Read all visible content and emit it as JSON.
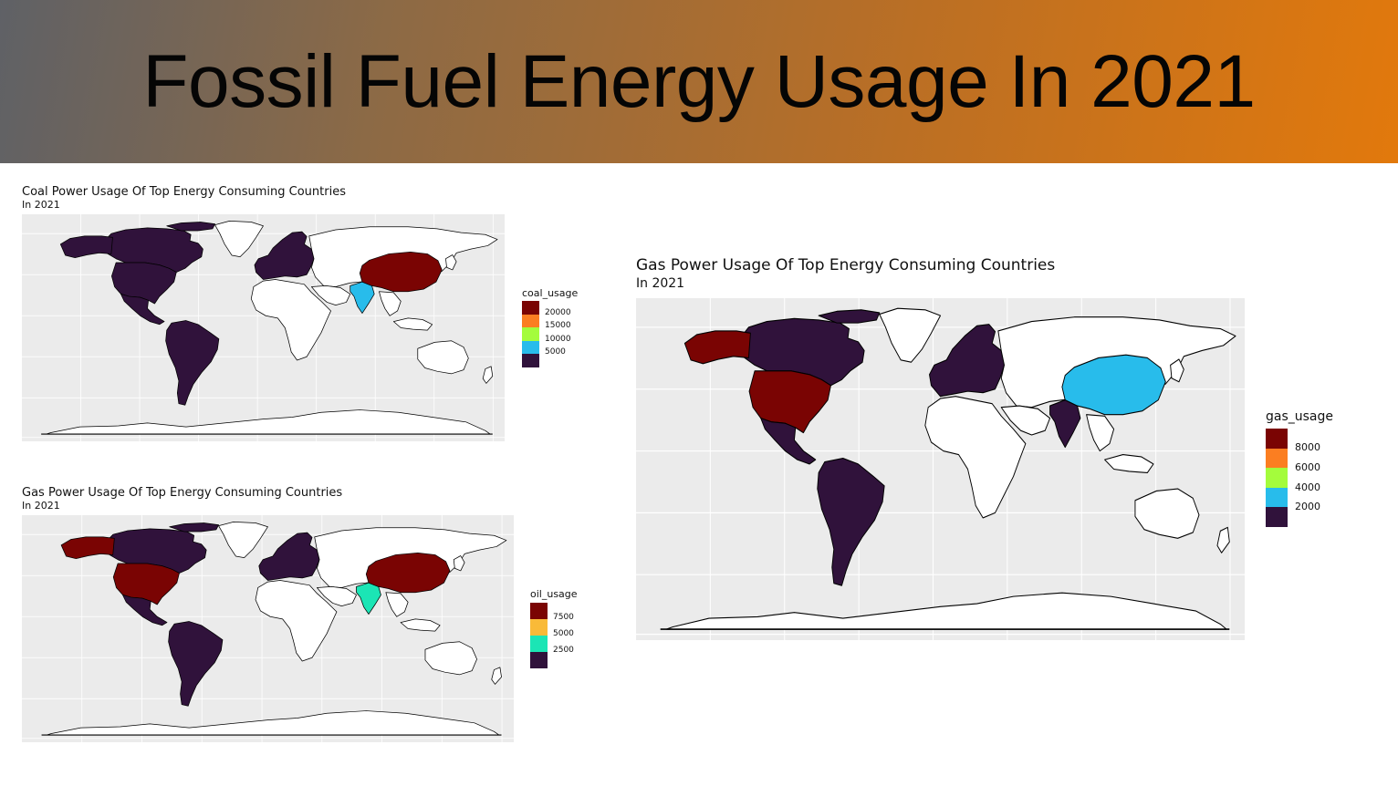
{
  "slide": {
    "title": "Fossil Fuel Energy Usage In 2021"
  },
  "colors": {
    "banner_start": "#5f6166",
    "banner_end": "#e2790c",
    "panel_bg": "#ebebeb",
    "land": "#ffffff"
  },
  "maps": [
    {
      "id": "coal",
      "title": "Coal Power Usage Of Top Energy Consuming Countries",
      "subtitle": "In 2021",
      "legend": {
        "title": "coal_usage",
        "labels": [
          "20000",
          "15000",
          "10000",
          "5000"
        ],
        "colors": [
          "#7a0403",
          "#fb7e21",
          "#a4fc3c",
          "#28bceb",
          "#30123b"
        ]
      },
      "regions": {
        "north_america": "#30123b",
        "alaska": "#30123b",
        "usa": "#30123b",
        "mexico": "#30123b",
        "south_america": "#30123b",
        "europe": "#30123b",
        "china": "#7a0403",
        "india": "#28bceb"
      }
    },
    {
      "id": "oil",
      "title": "Gas Power Usage Of Top Energy Consuming Countries",
      "subtitle": "In 2021",
      "legend": {
        "title": "oil_usage",
        "labels": [
          "7500",
          "5000",
          "2500"
        ],
        "colors": [
          "#7a0403",
          "#f9ba38",
          "#1be5b5",
          "#30123b"
        ]
      },
      "regions": {
        "north_america": "#30123b",
        "alaska": "#7a0403",
        "usa": "#7a0403",
        "mexico": "#30123b",
        "south_america": "#30123b",
        "europe": "#30123b",
        "china": "#7a0403",
        "india": "#1be5b5"
      }
    },
    {
      "id": "gas",
      "title": "Gas Power Usage Of Top Energy Consuming Countries",
      "subtitle": "In 2021",
      "legend": {
        "title": "gas_usage",
        "labels": [
          "8000",
          "6000",
          "4000",
          "2000"
        ],
        "colors": [
          "#7a0403",
          "#fb7e21",
          "#a4fc3c",
          "#28bceb",
          "#30123b"
        ]
      },
      "regions": {
        "north_america": "#30123b",
        "alaska": "#7a0403",
        "usa": "#7a0403",
        "mexico": "#30123b",
        "south_america": "#30123b",
        "europe": "#30123b",
        "china": "#28bceb",
        "india": "#30123b"
      }
    }
  ]
}
